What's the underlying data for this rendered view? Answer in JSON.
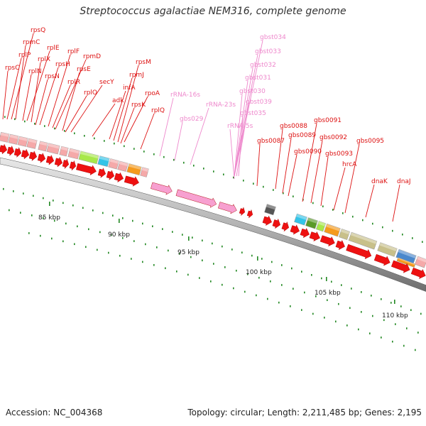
{
  "title": "Streptococcus agalactiae NEM316, complete genome",
  "accession": "Accession: NC_004368",
  "summary": "Topology: circular; Length: 2,211,485 bp; Genes: 2,195",
  "colors": {
    "gene_label": "#dd1111",
    "rna_label": "#ee88cc",
    "gene_arrow": "#ee1111",
    "pink_block": "#f5a9a9",
    "rna_arrow": "#f7a0d0",
    "tick": "#228822"
  },
  "scale_labels": [
    {
      "id": "85",
      "text": "85 kbp"
    },
    {
      "id": "90",
      "text": "90 kbp"
    },
    {
      "id": "95",
      "text": "95 kbp"
    },
    {
      "id": "100",
      "text": "100 kbp"
    },
    {
      "id": "105",
      "text": "105 kbp"
    },
    {
      "id": "110",
      "text": "110 kbp"
    }
  ],
  "gene_labels": [
    {
      "id": "rpsQ",
      "text": "rpsQ",
      "kind": "gene"
    },
    {
      "id": "rpmC",
      "text": "rpmC",
      "kind": "gene"
    },
    {
      "id": "rplE",
      "text": "rplE",
      "kind": "gene"
    },
    {
      "id": "rplP",
      "text": "rplP",
      "kind": "gene"
    },
    {
      "id": "rplX",
      "text": "rplX",
      "kind": "gene"
    },
    {
      "id": "rplF",
      "text": "rplF",
      "kind": "gene"
    },
    {
      "id": "rpmD",
      "text": "rpmD",
      "kind": "gene"
    },
    {
      "id": "rpsC",
      "text": "rpsC",
      "kind": "gene"
    },
    {
      "id": "rplN",
      "text": "rplN",
      "kind": "gene"
    },
    {
      "id": "rpsH",
      "text": "rpsH",
      "kind": "gene"
    },
    {
      "id": "rpsE",
      "text": "rpsE",
      "kind": "gene"
    },
    {
      "id": "rpsN",
      "text": "rpsN",
      "kind": "gene"
    },
    {
      "id": "rpsM",
      "text": "rpsM",
      "kind": "gene"
    },
    {
      "id": "rplR",
      "text": "rplR",
      "kind": "gene"
    },
    {
      "id": "rpmJ",
      "text": "rpmJ",
      "kind": "gene"
    },
    {
      "id": "secY",
      "text": "secY",
      "kind": "gene"
    },
    {
      "id": "rplO",
      "text": "rplO",
      "kind": "gene"
    },
    {
      "id": "infA",
      "text": "infA",
      "kind": "gene"
    },
    {
      "id": "rpoA",
      "text": "rpoA",
      "kind": "gene"
    },
    {
      "id": "adk",
      "text": "adk",
      "kind": "gene"
    },
    {
      "id": "rpsK",
      "text": "rpsK",
      "kind": "gene"
    },
    {
      "id": "rplQ",
      "text": "rplQ",
      "kind": "gene"
    },
    {
      "id": "rRNA-16s",
      "text": "rRNA-16s",
      "kind": "rna"
    },
    {
      "id": "gbs029",
      "text": "gbs029",
      "kind": "rna"
    },
    {
      "id": "rRNA-23s",
      "text": "rRNA-23s",
      "kind": "rna"
    },
    {
      "id": "gbst034",
      "text": "gbst034",
      "kind": "rna"
    },
    {
      "id": "gbst033",
      "text": "gbst033",
      "kind": "rna"
    },
    {
      "id": "gbst032",
      "text": "gbst032",
      "kind": "rna"
    },
    {
      "id": "gbst031",
      "text": "gbst031",
      "kind": "rna"
    },
    {
      "id": "gbst030",
      "text": "gbst030",
      "kind": "rna"
    },
    {
      "id": "gbst039",
      "text": "gbst039",
      "kind": "rna"
    },
    {
      "id": "gbst035",
      "text": "gbst035",
      "kind": "rna"
    },
    {
      "id": "rRNA-5s",
      "text": "rRNA-5s",
      "kind": "rna"
    },
    {
      "id": "gbs0087",
      "text": "gbs0087",
      "kind": "gene"
    },
    {
      "id": "gbs0088",
      "text": "gbs0088",
      "kind": "gene"
    },
    {
      "id": "gbs0089",
      "text": "gbs0089",
      "kind": "gene"
    },
    {
      "id": "gbs0090",
      "text": "gbs0090",
      "kind": "gene"
    },
    {
      "id": "gbs0091",
      "text": "gbs0091",
      "kind": "gene"
    },
    {
      "id": "gbs0092",
      "text": "gbs0092",
      "kind": "gene"
    },
    {
      "id": "gbs0093",
      "text": "gbs0093",
      "kind": "gene"
    },
    {
      "id": "gbs0095",
      "text": "gbs0095",
      "kind": "gene"
    },
    {
      "id": "hrcA",
      "text": "hrcA",
      "kind": "gene"
    },
    {
      "id": "dnaK",
      "text": "dnaK",
      "kind": "gene"
    },
    {
      "id": "dnaJ",
      "text": "dnaJ",
      "kind": "gene"
    }
  ]
}
